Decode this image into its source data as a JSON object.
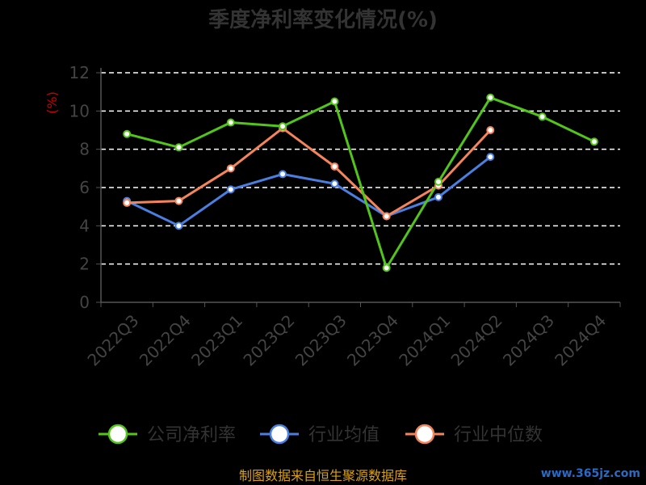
{
  "chart_data": {
    "type": "line",
    "title": "季度净利率变化情况(%)",
    "ylabel": "(%)",
    "xlabel": "",
    "categories": [
      "2022Q3",
      "2022Q4",
      "2023Q1",
      "2023Q2",
      "2023Q3",
      "2023Q4",
      "2024Q1",
      "2024Q2",
      "2024Q3",
      "2024Q4"
    ],
    "ylim": [
      0,
      12
    ],
    "yticks": [
      "0",
      "2",
      "4",
      "6",
      "8",
      "10",
      "12"
    ],
    "grid": "horizontal dashed",
    "legend_position": "bottom",
    "series": [
      {
        "name": "公司净利率",
        "color": "#52c41a",
        "values": [
          8.8,
          8.1,
          9.4,
          9.2,
          10.5,
          1.8,
          6.3,
          10.7,
          9.7,
          8.4
        ]
      },
      {
        "name": "行业均值",
        "color": "#4a7fe0",
        "values": [
          5.3,
          4.0,
          5.9,
          6.7,
          6.2,
          4.5,
          5.5,
          7.6,
          null,
          null
        ]
      },
      {
        "name": "行业中位数",
        "color": "#f5845a",
        "values": [
          5.2,
          5.3,
          7.0,
          9.1,
          7.1,
          4.5,
          6.1,
          9.0,
          null,
          null
        ]
      }
    ]
  },
  "footer": {
    "source": "制图数据来自恒生聚源数据库",
    "watermark": "www.365jz.com"
  }
}
